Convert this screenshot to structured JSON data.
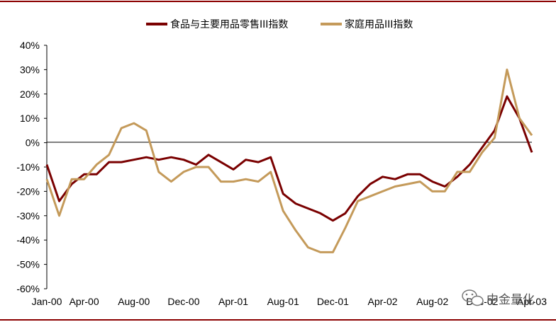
{
  "chart_data": {
    "type": "line",
    "title": "",
    "xlabel": "",
    "ylabel": "",
    "x_tick_labels": [
      "Jan-00",
      "Apr-00",
      "Aug-00",
      "Dec-00",
      "Apr-01",
      "Aug-01",
      "Dec-01",
      "Apr-02",
      "Aug-02",
      "Dec-02",
      "Apr-03"
    ],
    "x_tick_dates": [
      "2000-01",
      "2000-04",
      "2000-08",
      "2000-12",
      "2001-04",
      "2001-08",
      "2001-12",
      "2002-04",
      "2002-08",
      "2002-12",
      "2003-04"
    ],
    "y_tick_labels": [
      "40%",
      "30%",
      "20%",
      "10%",
      "0%",
      "-10%",
      "-20%",
      "-30%",
      "-40%",
      "-50%",
      "-60%"
    ],
    "ylim": [
      -60,
      40
    ],
    "xlim": [
      "2000-01",
      "2003-04"
    ],
    "grid": false,
    "legend_position": "top",
    "series": [
      {
        "name": "食品与主要用品零售III指数",
        "color": "#7a0000",
        "x": [
          "2000-01",
          "2000-02",
          "2000-03",
          "2000-04",
          "2000-05",
          "2000-06",
          "2000-07",
          "2000-08",
          "2000-09",
          "2000-10",
          "2000-11",
          "2000-12",
          "2001-01",
          "2001-02",
          "2001-03",
          "2001-04",
          "2001-05",
          "2001-06",
          "2001-07",
          "2001-08",
          "2001-09",
          "2001-10",
          "2001-11",
          "2001-12",
          "2002-01",
          "2002-02",
          "2002-03",
          "2002-04",
          "2002-05",
          "2002-06",
          "2002-07",
          "2002-08",
          "2002-09",
          "2002-10",
          "2002-11",
          "2002-12",
          "2003-01",
          "2003-02",
          "2003-03",
          "2003-04"
        ],
        "values": [
          -9,
          -24,
          -17,
          -13,
          -13,
          -8,
          -8,
          -7,
          -6,
          -7,
          -6,
          -7,
          -9,
          -5,
          -8,
          -11,
          -7,
          -8,
          -6,
          -21,
          -25,
          -27,
          -29,
          -32,
          -29,
          -22,
          -17,
          -14,
          -15,
          -13,
          -13,
          -16,
          -18,
          -14,
          -9,
          -2,
          5,
          19,
          10,
          -4
        ]
      },
      {
        "name": "家庭用品III指数",
        "color": "#c49a5a",
        "x": [
          "2000-01",
          "2000-02",
          "2000-03",
          "2000-04",
          "2000-05",
          "2000-06",
          "2000-07",
          "2000-08",
          "2000-09",
          "2000-10",
          "2000-11",
          "2000-12",
          "2001-01",
          "2001-02",
          "2001-03",
          "2001-04",
          "2001-05",
          "2001-06",
          "2001-07",
          "2001-08",
          "2001-09",
          "2001-10",
          "2001-11",
          "2001-12",
          "2002-01",
          "2002-02",
          "2002-03",
          "2002-04",
          "2002-05",
          "2002-06",
          "2002-07",
          "2002-08",
          "2002-09",
          "2002-10",
          "2002-11",
          "2002-12",
          "2003-01",
          "2003-02",
          "2003-03",
          "2003-04"
        ],
        "values": [
          -15,
          -30,
          -15,
          -15,
          -9,
          -5,
          6,
          8,
          5,
          -12,
          -16,
          -12,
          -10,
          -10,
          -16,
          -16,
          -15,
          -16,
          -12,
          -28,
          -36,
          -43,
          -45,
          -45,
          -35,
          -24,
          -22,
          -20,
          -18,
          -17,
          -16,
          -20,
          -20,
          -12,
          -12,
          -4,
          2,
          30,
          10,
          3
        ]
      }
    ]
  },
  "watermark": {
    "text": "中金量化",
    "icon": "wechat-icon"
  }
}
